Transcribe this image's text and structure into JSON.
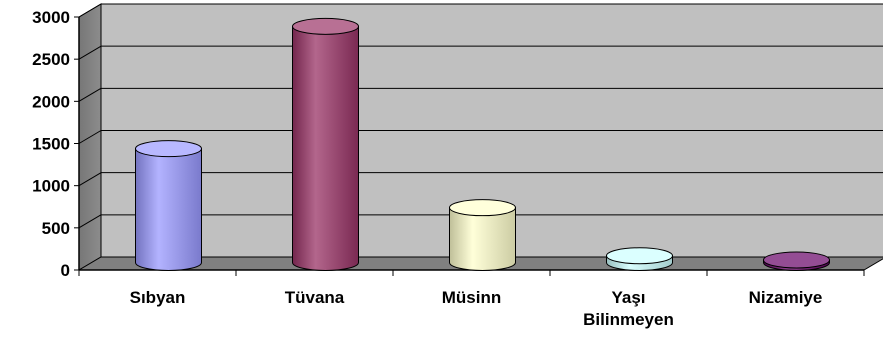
{
  "chart_data": {
    "type": "bar",
    "style": "3d-cylinder",
    "categories": [
      "Sıbyan",
      "Tüvana",
      "Müsinn",
      "Yaşı Bilinmeyen",
      "Nizamiye"
    ],
    "category_lines": [
      [
        "Sıbyan"
      ],
      [
        "Tüvana"
      ],
      [
        "Müsinn"
      ],
      [
        "Yaşı",
        "Bilinmeyen"
      ],
      [
        "Nizamiye"
      ]
    ],
    "values": [
      1350,
      2800,
      650,
      80,
      30
    ],
    "colors": [
      "#9999ff",
      "#993366",
      "#ffffcc",
      "#ccffff",
      "#660066"
    ],
    "ylim": [
      0,
      3000
    ],
    "yticks": [
      0,
      500,
      1000,
      1500,
      2000,
      2500,
      3000
    ],
    "grid": true,
    "legend": "none",
    "title": "",
    "xlabel": "",
    "ylabel": ""
  }
}
